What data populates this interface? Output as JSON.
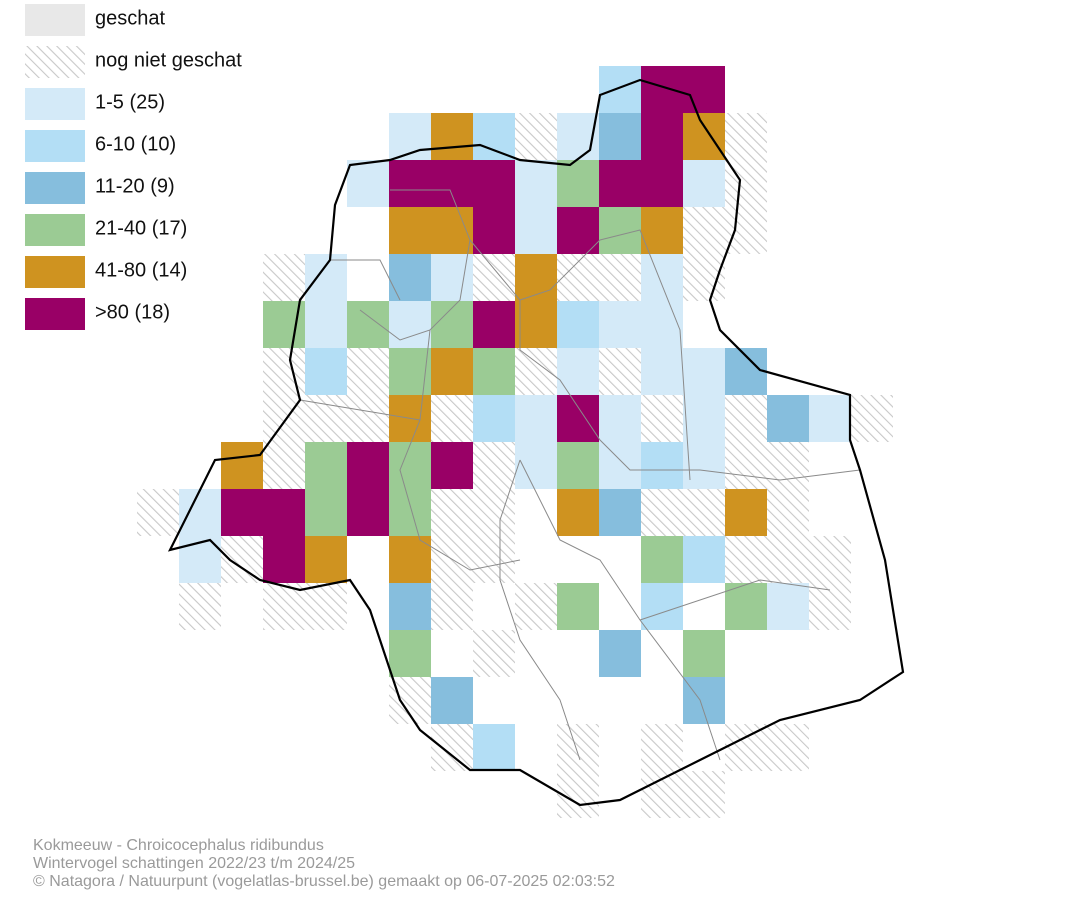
{
  "legend": {
    "items": [
      {
        "label": "geschat"
      },
      {
        "label": "nog niet geschat"
      },
      {
        "label": "1-5 (25)"
      },
      {
        "label": "6-10 (10)"
      },
      {
        "label": "11-20 (9)"
      },
      {
        "label": "21-40 (17)"
      },
      {
        "label": "41-80 (14)"
      },
      {
        "label": ">80 (18)"
      }
    ]
  },
  "caption": {
    "lines": [
      "Kokmeeuw - Chroicocephalus ridibundus",
      "Wintervogel schattingen 2022/23 t/m 2024/25",
      "© Natagora / Natuurpunt (vogelatlas-brussel.be) gemaakt op 06-07-2025 02:03:52"
    ]
  }
}
